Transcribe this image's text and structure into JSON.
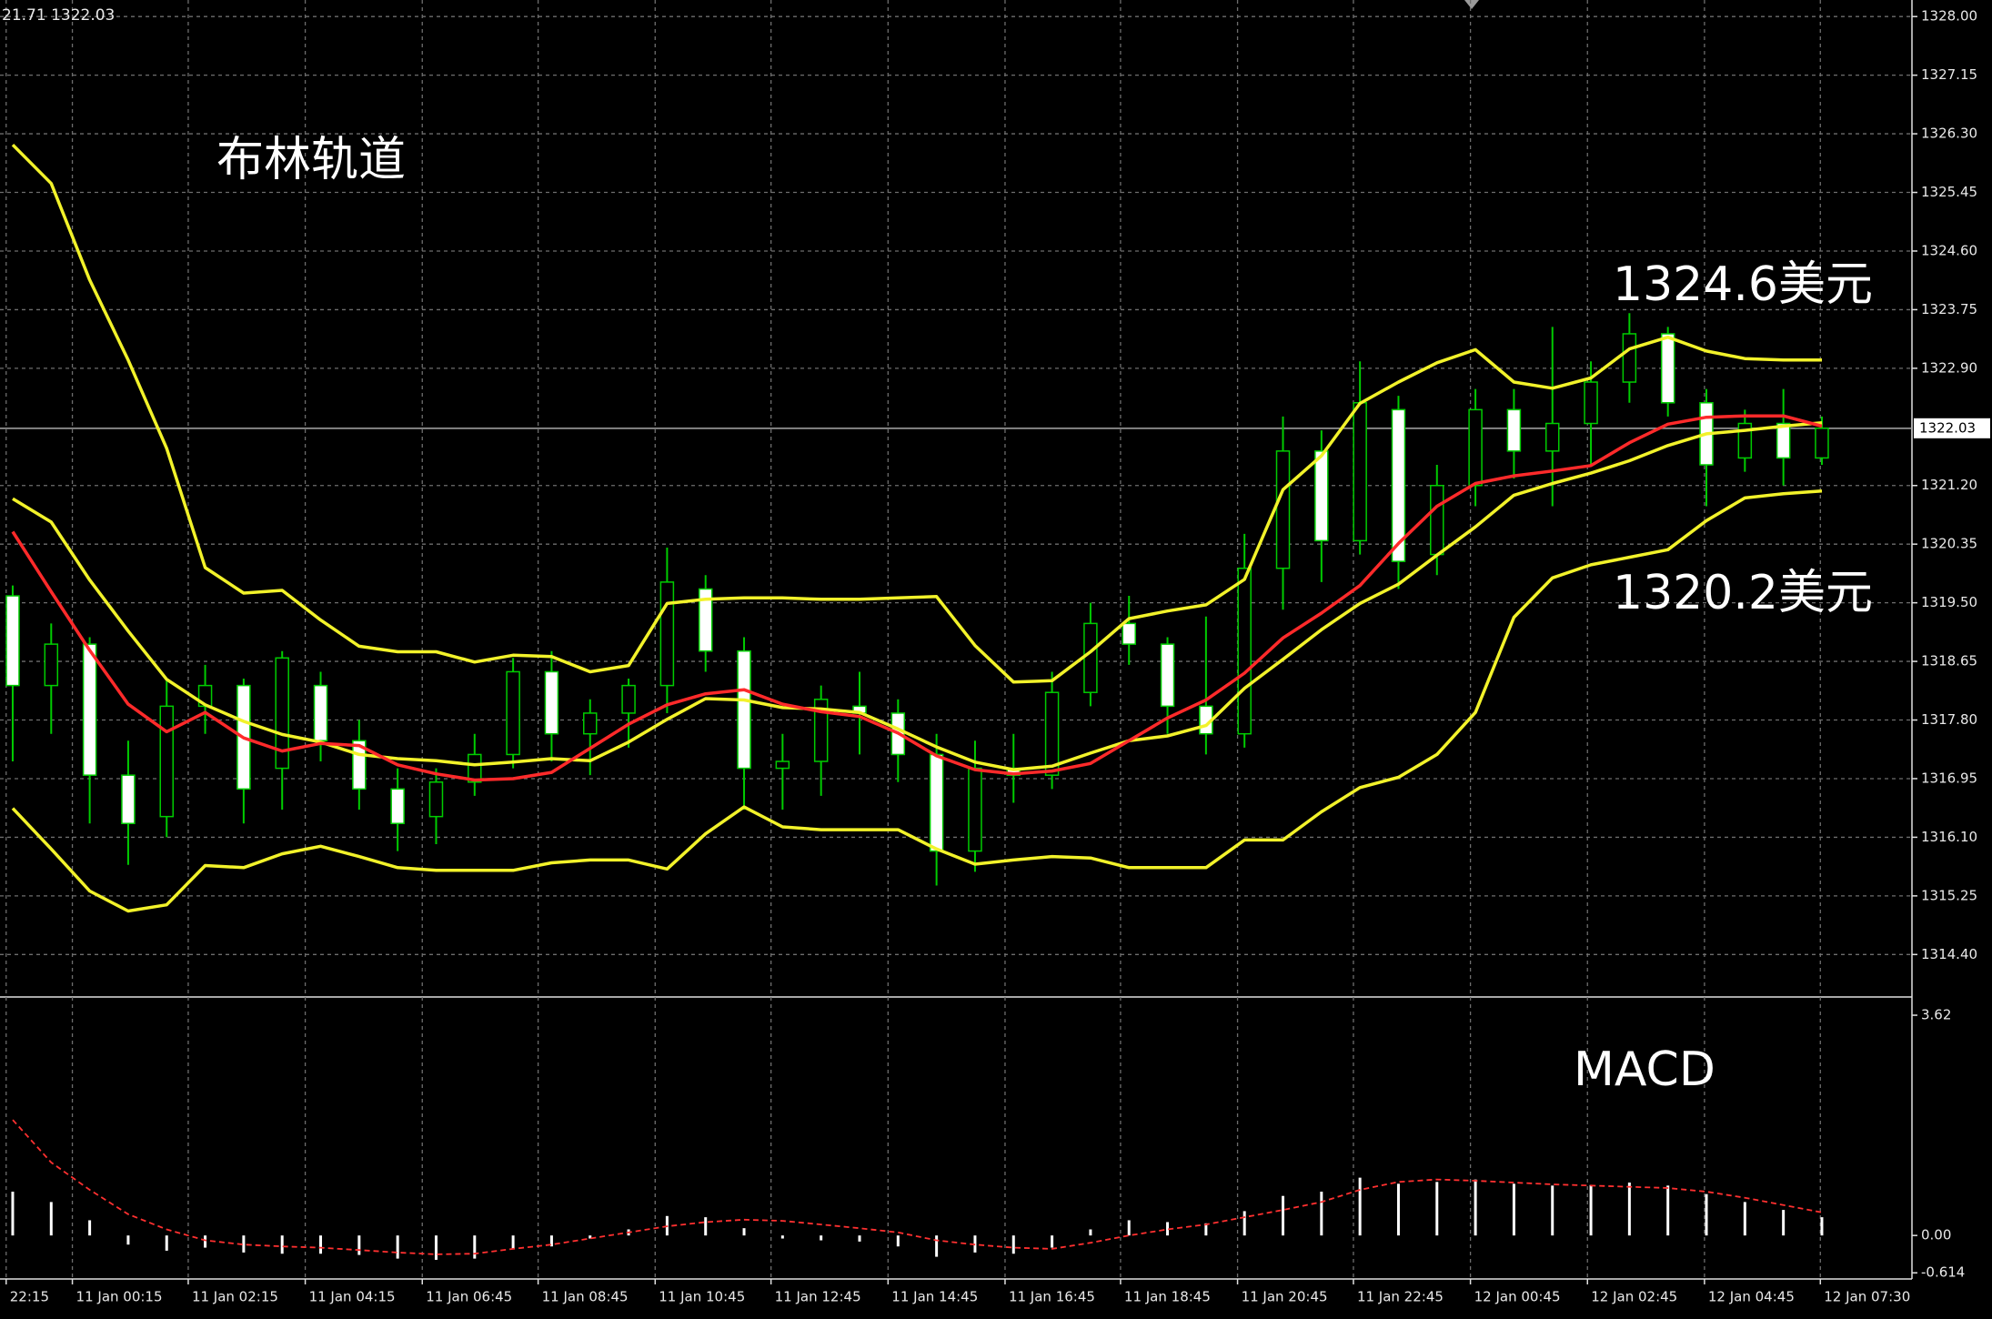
{
  "chart_data": [
    {
      "type": "candlestick",
      "header": "21.71 1322.03",
      "annotations": [
        "布林轨道",
        "1324.6美元",
        "1320.2美元"
      ],
      "ylim": [
        1313.85,
        1328.24
      ],
      "yticks": [
        {
          "value": 1328,
          "label": "1328.00"
        },
        1327.15,
        {
          "value": 1326.3,
          "label": "1326.30"
        },
        1325.45,
        {
          "value": 1324.6,
          "label": "1324.60"
        },
        1323.75,
        {
          "value": 1322.9,
          "label": "1322.90"
        },
        {
          "value": 1321.2,
          "label": "1321.20"
        },
        1320.35,
        {
          "value": 1319.5,
          "label": "1319.50"
        },
        1318.65,
        {
          "value": 1317.8,
          "label": "1317.80"
        },
        1316.95,
        {
          "value": 1316.1,
          "label": "1316.10"
        },
        1315.25,
        {
          "value": 1314.4,
          "label": "1314.40"
        }
      ],
      "current_price": {
        "value": 1322.03,
        "label": "1322.03"
      },
      "xlim": [
        -0.33,
        49.34
      ],
      "xticks": [
        {
          "value": -0.17,
          "label": "22:15"
        },
        {
          "value": 1.55,
          "label": "11 Jan 00:15"
        },
        {
          "value": 4.56,
          "label": "11 Jan 02:15"
        },
        {
          "value": 7.6,
          "label": "11 Jan 04:15"
        },
        {
          "value": 10.64,
          "label": "11 Jan 06:45"
        },
        {
          "value": 13.65,
          "label": "11 Jan 08:45"
        },
        {
          "value": 16.69,
          "label": "11 Jan 10:45"
        },
        {
          "value": 19.7,
          "label": "11 Jan 12:45"
        },
        {
          "value": 22.74,
          "label": "11 Jan 14:45"
        },
        {
          "value": 25.78,
          "label": "11 Jan 16:45"
        },
        {
          "value": 28.78,
          "label": "11 Jan 18:45"
        },
        {
          "value": 31.82,
          "label": "11 Jan 20:45"
        },
        {
          "value": 34.83,
          "label": "11 Jan 22:45"
        },
        {
          "value": 37.87,
          "label": "12 Jan 00:45"
        },
        {
          "value": 40.91,
          "label": "12 Jan 02:45"
        },
        {
          "value": 43.95,
          "label": "12 Jan 04:45"
        },
        {
          "value": 46.96,
          "label": "12 Jan 07:30"
        }
      ],
      "grid": true,
      "wick_color": "#00cc00",
      "up_color": "#000000",
      "down_color": "#ffffff",
      "open": [
        1319.6,
        1318.3,
        1318.9,
        1317.0,
        1316.4,
        1318.0,
        1318.3,
        1317.1,
        1318.3,
        1317.5,
        1316.8,
        1316.4,
        1316.9,
        1317.3,
        1318.5,
        1317.6,
        1317.9,
        1318.3,
        1319.7,
        1318.8,
        1317.1,
        1317.2,
        1318.0,
        1317.9,
        1317.3,
        1315.9,
        1317.1,
        1317.0,
        1318.2,
        1319.2,
        1318.9,
        1318.0,
        1317.6,
        1320.0,
        1321.7,
        1320.4,
        1322.3,
        1320.2,
        1321.2,
        1322.3,
        1321.7,
        1322.1,
        1322.7,
        1323.4,
        1322.4,
        1321.6,
        1322.1,
        1321.6
      ],
      "high": [
        1319.75,
        1319.2,
        1319.0,
        1317.5,
        1318.4,
        1318.6,
        1318.4,
        1318.8,
        1318.5,
        1317.8,
        1317.1,
        1317.1,
        1317.6,
        1318.7,
        1318.8,
        1318.1,
        1318.4,
        1320.3,
        1319.9,
        1319.0,
        1317.6,
        1318.3,
        1318.5,
        1318.1,
        1317.6,
        1317.5,
        1317.6,
        1318.5,
        1319.5,
        1319.6,
        1319.0,
        1319.3,
        1320.5,
        1322.2,
        1322.0,
        1323.0,
        1322.5,
        1321.5,
        1322.6,
        1322.6,
        1323.5,
        1323.0,
        1323.7,
        1323.5,
        1322.6,
        1322.3,
        1322.6,
        1322.2
      ],
      "low": [
        1317.2,
        1317.6,
        1316.3,
        1315.7,
        1316.1,
        1317.6,
        1316.3,
        1316.5,
        1317.2,
        1316.5,
        1315.9,
        1316.0,
        1316.7,
        1317.1,
        1317.2,
        1317.0,
        1317.4,
        1317.9,
        1318.5,
        1316.5,
        1316.5,
        1316.7,
        1317.3,
        1316.9,
        1315.4,
        1315.6,
        1316.6,
        1316.8,
        1318.0,
        1318.6,
        1317.6,
        1317.3,
        1317.4,
        1319.4,
        1319.8,
        1320.2,
        1319.7,
        1319.9,
        1320.9,
        1321.3,
        1320.9,
        1321.5,
        1322.4,
        1322.2,
        1320.9,
        1321.4,
        1321.2,
        1321.5
      ],
      "close": [
        1318.3,
        1318.9,
        1317.0,
        1316.3,
        1318.0,
        1318.3,
        1316.8,
        1318.7,
        1317.5,
        1316.8,
        1316.3,
        1316.9,
        1317.3,
        1318.5,
        1317.6,
        1317.9,
        1318.3,
        1319.8,
        1318.8,
        1317.1,
        1317.2,
        1318.1,
        1317.9,
        1317.3,
        1315.9,
        1317.1,
        1317.0,
        1318.2,
        1319.2,
        1318.9,
        1318.0,
        1317.6,
        1320.0,
        1321.7,
        1320.4,
        1322.4,
        1320.1,
        1321.2,
        1322.3,
        1321.7,
        1322.1,
        1322.7,
        1323.4,
        1322.4,
        1321.5,
        1322.1,
        1321.6,
        1322.03
      ],
      "lines": [
        {
          "color": "#f2f22a",
          "values": [
            1326.14,
            1325.58,
            1324.18,
            1323.02,
            1321.74,
            1320.01,
            1319.64,
            1319.68,
            1319.25,
            1318.87,
            1318.79,
            1318.79,
            1318.64,
            1318.74,
            1318.72,
            1318.5,
            1318.59,
            1319.49,
            1319.55,
            1319.57,
            1319.57,
            1319.55,
            1319.55,
            1319.57,
            1319.59,
            1318.88,
            1318.35,
            1318.37,
            1318.79,
            1319.27,
            1319.38,
            1319.47,
            1319.84,
            1321.14,
            1321.63,
            1322.39,
            1322.7,
            1322.98,
            1323.17,
            1322.7,
            1322.61,
            1322.76,
            1323.18,
            1323.35,
            1323.15,
            1323.04,
            1323.02,
            1323.02
          ]
        },
        {
          "color": "#f2f22a",
          "values": [
            1316.52,
            1315.93,
            1315.32,
            1315.03,
            1315.12,
            1315.69,
            1315.66,
            1315.86,
            1315.97,
            1315.82,
            1315.66,
            1315.62,
            1315.62,
            1315.62,
            1315.73,
            1315.77,
            1315.77,
            1315.64,
            1316.15,
            1316.54,
            1316.25,
            1316.21,
            1316.21,
            1316.21,
            1315.93,
            1315.71,
            1315.77,
            1315.82,
            1315.8,
            1315.66,
            1315.66,
            1315.66,
            1316.06,
            1316.06,
            1316.47,
            1316.82,
            1316.97,
            1317.3,
            1317.91,
            1319.29,
            1319.86,
            1320.05,
            1320.16,
            1320.27,
            1320.69,
            1321.02,
            1321.08,
            1321.12
          ]
        },
        {
          "color": "#f2f22a",
          "values": [
            1321.01,
            1320.67,
            1319.83,
            1319.09,
            1318.39,
            1318.02,
            1317.78,
            1317.59,
            1317.48,
            1317.3,
            1317.24,
            1317.21,
            1317.15,
            1317.19,
            1317.24,
            1317.21,
            1317.48,
            1317.81,
            1318.11,
            1318.09,
            1317.98,
            1317.96,
            1317.91,
            1317.67,
            1317.41,
            1317.19,
            1317.08,
            1317.13,
            1317.32,
            1317.5,
            1317.57,
            1317.72,
            1318.26,
            1318.68,
            1319.11,
            1319.49,
            1319.77,
            1320.19,
            1320.6,
            1321.06,
            1321.23,
            1321.38,
            1321.56,
            1321.78,
            1321.95,
            1322.0,
            1322.06,
            1322.11
          ]
        },
        {
          "color": "#ff2a2a",
          "values": [
            1320.53,
            1319.66,
            1318.81,
            1318.03,
            1317.63,
            1317.91,
            1317.54,
            1317.35,
            1317.46,
            1317.43,
            1317.15,
            1317.02,
            1316.93,
            1316.95,
            1317.04,
            1317.39,
            1317.74,
            1318.02,
            1318.18,
            1318.24,
            1318.03,
            1317.92,
            1317.85,
            1317.61,
            1317.28,
            1317.08,
            1317.02,
            1317.06,
            1317.17,
            1317.5,
            1317.83,
            1318.09,
            1318.48,
            1318.99,
            1319.35,
            1319.75,
            1320.36,
            1320.9,
            1321.23,
            1321.34,
            1321.41,
            1321.49,
            1321.82,
            1322.09,
            1322.19,
            1322.21,
            1322.21,
            1322.06
          ]
        }
      ]
    },
    {
      "type": "macd",
      "title": "MACD",
      "ylim": [
        -0.7,
        3.845
      ],
      "yticks": [
        3.62,
        {
          "value": 0,
          "label": "0.00"
        },
        -0.614
      ],
      "histogram_color": "#ffffff",
      "signal_color": "#ff3030",
      "histogram": [
        0.72,
        0.55,
        0.25,
        -0.15,
        -0.25,
        -0.2,
        -0.28,
        -0.3,
        -0.3,
        -0.32,
        -0.38,
        -0.4,
        -0.38,
        -0.22,
        -0.18,
        -0.05,
        0.1,
        0.32,
        0.3,
        0.12,
        -0.05,
        -0.08,
        -0.1,
        -0.18,
        -0.35,
        -0.28,
        -0.3,
        -0.2,
        0.1,
        0.25,
        0.22,
        0.2,
        0.4,
        0.65,
        0.72,
        0.95,
        0.85,
        0.88,
        0.92,
        0.85,
        0.82,
        0.83,
        0.87,
        0.82,
        0.68,
        0.55,
        0.42,
        0.3
      ],
      "signal": [
        1.9,
        1.2,
        0.75,
        0.35,
        0.1,
        -0.08,
        -0.15,
        -0.18,
        -0.2,
        -0.24,
        -0.28,
        -0.31,
        -0.3,
        -0.22,
        -0.15,
        -0.05,
        0.05,
        0.15,
        0.22,
        0.26,
        0.24,
        0.18,
        0.12,
        0.05,
        -0.08,
        -0.15,
        -0.2,
        -0.22,
        -0.12,
        0.0,
        0.1,
        0.18,
        0.3,
        0.42,
        0.55,
        0.75,
        0.88,
        0.92,
        0.9,
        0.87,
        0.84,
        0.82,
        0.8,
        0.78,
        0.72,
        0.62,
        0.5,
        0.38
      ]
    }
  ]
}
